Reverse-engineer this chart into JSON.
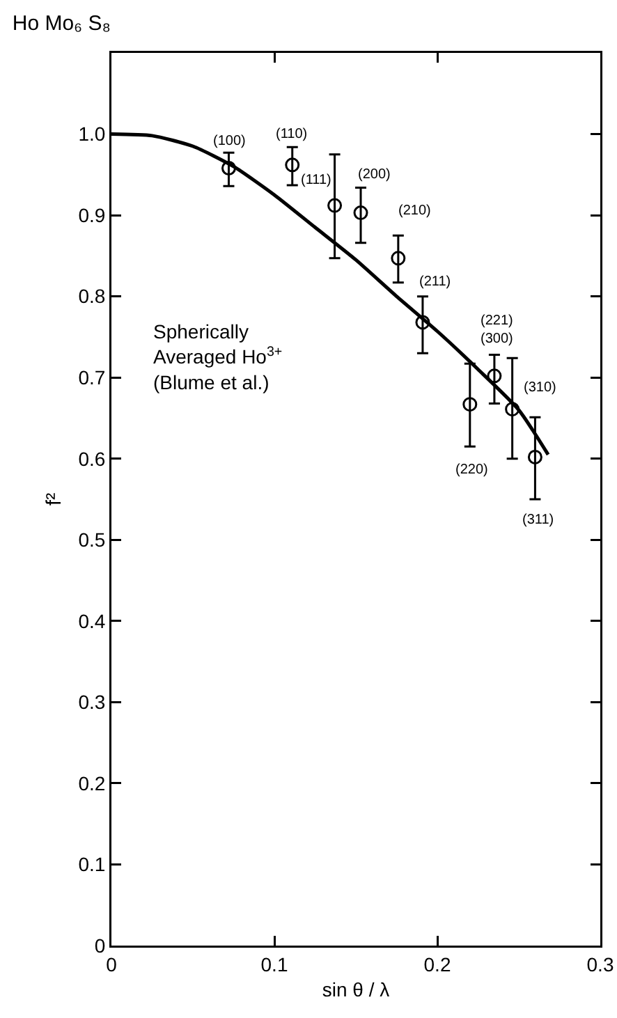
{
  "chart_data": {
    "type": "scatter",
    "title": "Ho Mo₆ S₈",
    "xlabel": "sin θ / λ",
    "ylabel": "f²",
    "xlim": [
      0,
      0.3
    ],
    "xticks": [
      0,
      0.1,
      0.2,
      0.3
    ],
    "ylim": [
      0,
      1.1
    ],
    "yticks": [
      0,
      0.1,
      0.2,
      0.3,
      0.4,
      0.5,
      0.6,
      0.7,
      0.8,
      0.9,
      {
        "value": 1,
        "label": "1.0"
      }
    ],
    "grid": false,
    "marker": "circle",
    "series": [
      {
        "color": "#000000",
        "x": [
          0.072,
          0.111,
          0.137,
          0.153,
          0.176,
          0.191,
          0.22,
          0.235,
          0.246,
          0.26
        ],
        "values": [
          0.958,
          0.962,
          0.912,
          0.903,
          0.847,
          0.768,
          0.667,
          0.702,
          0.661,
          0.602
        ],
        "errors": [
          [
            0.936,
            0.977
          ],
          [
            0.937,
            0.984
          ],
          [
            0.847,
            0.975
          ],
          [
            0.866,
            0.934
          ],
          [
            0.817,
            0.875
          ],
          [
            0.73,
            0.8
          ],
          [
            0.615,
            0.717
          ],
          [
            0.668,
            0.728
          ],
          [
            0.6,
            0.724
          ],
          [
            0.55,
            0.651
          ]
        ]
      },
      {
        "type": "line",
        "color": "#000000",
        "line_style": "solid",
        "marker": "none",
        "x": [
          0,
          0.025,
          0.05,
          0.075,
          0.1,
          0.125,
          0.15,
          0.175,
          0.2,
          0.225,
          0.25,
          0.268
        ],
        "values": [
          1.0,
          0.998,
          0.985,
          0.96,
          0.925,
          0.885,
          0.845,
          0.8,
          0.757,
          0.71,
          0.66,
          0.605
        ]
      }
    ],
    "annotations": [
      {
        "text": "(100)",
        "x": 0.072,
        "y": 0.958
      },
      {
        "text": "(110)",
        "x": 0.111,
        "y": 0.962
      },
      {
        "text": "(111)",
        "x": 0.137,
        "y": 0.912
      },
      {
        "text": "(200)",
        "x": 0.153,
        "y": 0.903
      },
      {
        "text": "(210)",
        "x": 0.176,
        "y": 0.847
      },
      {
        "text": "(211)",
        "x": 0.191,
        "y": 0.768
      },
      {
        "text": "(221)",
        "x": 0.235,
        "y": 0.728
      },
      {
        "text": "(300)",
        "x": 0.235,
        "y": 0.728
      },
      {
        "text": "(310)",
        "x": 0.246,
        "y": 0.661
      },
      {
        "text": "(220)",
        "x": 0.22,
        "y": 0.615
      },
      {
        "text": "(311)",
        "x": 0.26,
        "y": 0.55
      },
      "Spherically\nAveraged Ho$^{3+}$\n(Blume et al.)"
    ]
  }
}
